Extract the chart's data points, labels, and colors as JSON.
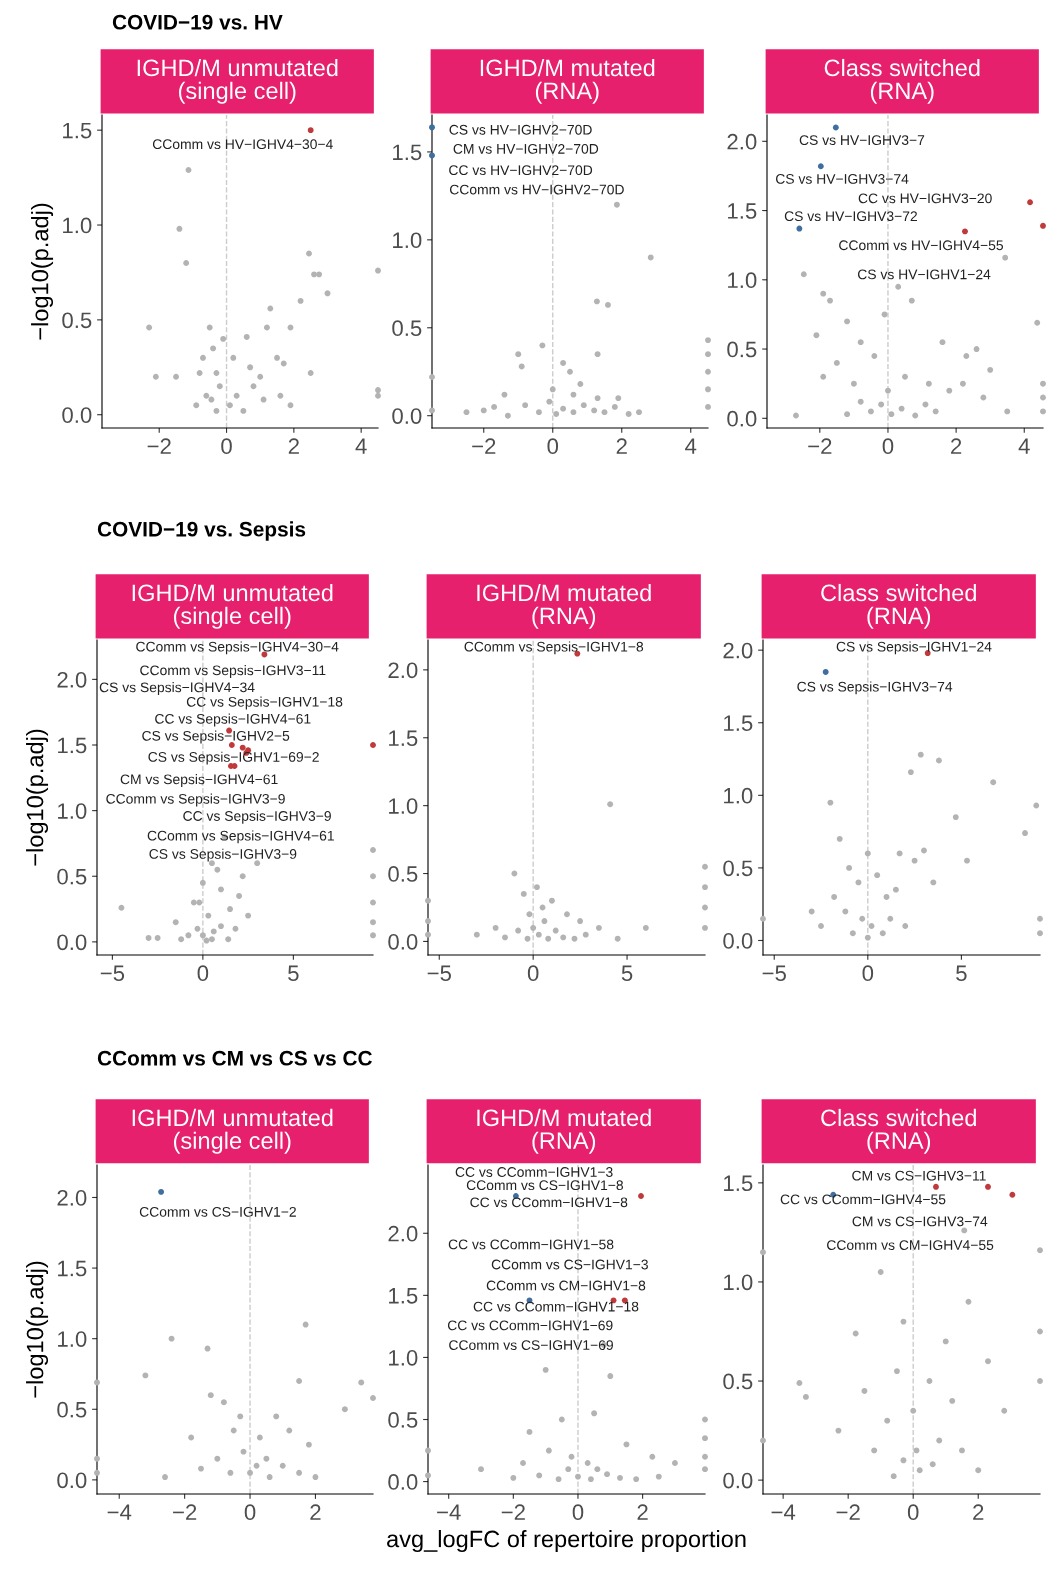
{
  "chart_data": [
    {
      "type": "scatter",
      "subtitle": "COVID−19 vs. HV",
      "title": "IGHD/M unmutated\n(single cell)",
      "ylabel": "−log10(p.adj)",
      "xlim": [
        -3.7,
        4.5
      ],
      "ylim": [
        -0.07,
        1.58
      ],
      "xticks": [
        {
          "value": -2,
          "label": "−2"
        },
        0,
        2,
        4
      ],
      "yticks": [
        {
          "value": 0,
          "label": "0.0"
        },
        {
          "value": 0.5,
          "label": "0.5"
        },
        {
          "value": 1,
          "label": "1.0"
        },
        {
          "value": 1.5,
          "label": "1.5"
        }
      ],
      "ref_lines": [
        {
          "axis": "x",
          "value": 0,
          "color": "#cccccc",
          "line_style": "dashed"
        }
      ],
      "series": [
        {
          "color": "#b3b3b3",
          "x": [
            -1.13,
            -1.4,
            -1.2,
            -2.3,
            2.45,
            2.6,
            2.75,
            3.0,
            4.5,
            4.5,
            4.5,
            2.2,
            1.9,
            1.2,
            1.3,
            0.6,
            -0.5,
            -0.4,
            -2.1,
            -1.5,
            -0.7,
            -0.8,
            -0.3,
            -0.6,
            -0.2,
            0.1,
            0.3,
            0.5,
            0.8,
            1.0,
            1.5,
            1.6,
            1.9,
            -0.3,
            -0.9,
            0.2,
            0.7,
            -0.1,
            1.1,
            2.5,
            1.7,
            -0.45
          ],
          "values": [
            1.29,
            0.98,
            0.8,
            0.46,
            0.85,
            0.74,
            0.74,
            0.64,
            0.76,
            0.13,
            0.1,
            0.6,
            0.46,
            0.46,
            0.56,
            0.41,
            0.46,
            0.35,
            0.2,
            0.2,
            0.3,
            0.22,
            0.22,
            0.1,
            0.15,
            0.05,
            0.1,
            0.02,
            0.15,
            0.2,
            0.3,
            0.1,
            0.05,
            0.02,
            0.05,
            0.3,
            0.25,
            0.4,
            0.08,
            0.22,
            0.27,
            0.08
          ]
        },
        {
          "color": "#c0393b",
          "x": [
            2.5
          ],
          "values": [
            1.5
          ]
        }
      ],
      "annotations": [
        "CComm vs HV−IGHV4−30−4"
      ]
    },
    {
      "type": "scatter",
      "title": "IGHD/M mutated\n(RNA)",
      "xlim": [
        -3.5,
        4.5
      ],
      "ylim": [
        -0.07,
        1.71
      ],
      "xticks": [
        {
          "value": -2,
          "label": "−2"
        },
        0,
        2,
        4
      ],
      "yticks": [
        {
          "value": 0,
          "label": "0.0"
        },
        {
          "value": 0.5,
          "label": "0.5"
        },
        {
          "value": 1,
          "label": "1.0"
        },
        {
          "value": 1.5,
          "label": "1.5"
        }
      ],
      "ref_lines": [
        {
          "axis": "x",
          "value": 0,
          "color": "#cccccc",
          "line_style": "dashed"
        }
      ],
      "series": [
        {
          "color": "#b3b3b3",
          "x": [
            1.86,
            2.84,
            1.28,
            1.6,
            4.5,
            4.5,
            4.5,
            4.5,
            4.5,
            -3.5,
            -3.5,
            -1.0,
            -0.9,
            -0.3,
            0.3,
            0.5,
            0.8,
            1.3,
            1.3,
            -1.7,
            -2.5,
            -2.0,
            -1.3,
            -0.8,
            -0.4,
            -0.1,
            0.1,
            0.3,
            0.6,
            0.9,
            1.2,
            1.5,
            1.8,
            2.2,
            2.5,
            -1.4,
            0.0,
            0.6,
            1.9
          ],
          "values": [
            1.2,
            0.9,
            0.65,
            0.63,
            0.43,
            0.35,
            0.25,
            0.15,
            0.05,
            0.22,
            0.03,
            0.35,
            0.28,
            0.4,
            0.3,
            0.25,
            0.18,
            0.35,
            0.1,
            0.05,
            0.02,
            0.03,
            0.0,
            0.06,
            0.02,
            0.08,
            0.01,
            0.04,
            0.02,
            0.06,
            0.03,
            0.02,
            0.05,
            0.01,
            0.02,
            0.12,
            0.15,
            0.12,
            0.1
          ]
        },
        {
          "color": "#3e6f9e",
          "x": [
            -3.5,
            -3.5
          ],
          "values": [
            1.64,
            1.48
          ]
        }
      ],
      "annotations": [
        "CS vs HV−IGHV2−70D",
        "CM vs HV−IGHV2−70D",
        "CC vs HV−IGHV2−70D",
        "CComm vs HV−IGHV2−70D"
      ]
    },
    {
      "type": "scatter",
      "title": "Class switched\n(RNA)",
      "xlim": [
        -3.55,
        4.55
      ],
      "ylim": [
        -0.07,
        2.19
      ],
      "xticks": [
        {
          "value": -2,
          "label": "−2"
        },
        0,
        2,
        4
      ],
      "yticks": [
        {
          "value": 0,
          "label": "0.0"
        },
        {
          "value": 0.5,
          "label": "0.5"
        },
        {
          "value": 1,
          "label": "1.0"
        },
        {
          "value": 1.5,
          "label": "1.5"
        },
        {
          "value": 2,
          "label": "2.0"
        }
      ],
      "ref_lines": [
        {
          "axis": "x",
          "value": 0,
          "color": "#cccccc",
          "line_style": "dashed"
        }
      ],
      "series": [
        {
          "color": "#b3b3b3",
          "x": [
            3.44,
            4.38,
            -2.47,
            -1.9,
            -1.7,
            -1.2,
            -0.8,
            -0.4,
            0.7,
            0.3,
            -0.1,
            1.6,
            2.3,
            2.6,
            3.0,
            4.55,
            4.55,
            4.55,
            -2.1,
            -1.5,
            -1.0,
            0.5,
            1.2,
            1.8,
            2.2,
            -0.5,
            -0.2,
            0.1,
            0.4,
            0.8,
            1.1,
            -1.2,
            -0.8,
            0.0,
            1.4,
            -2.7,
            2.8,
            -1.9,
            3.5
          ],
          "values": [
            1.16,
            0.69,
            1.04,
            0.9,
            0.85,
            0.7,
            0.55,
            0.45,
            0.85,
            0.95,
            0.75,
            0.55,
            0.45,
            0.5,
            0.35,
            0.25,
            0.15,
            0.05,
            0.6,
            0.4,
            0.25,
            0.3,
            0.25,
            0.2,
            0.25,
            0.05,
            0.1,
            0.03,
            0.07,
            0.02,
            0.1,
            0.03,
            0.12,
            0.2,
            0.05,
            0.02,
            0.15,
            0.3,
            0.05
          ]
        },
        {
          "color": "#c0393b",
          "x": [
            4.17,
            4.55,
            2.26
          ],
          "values": [
            1.56,
            1.39,
            1.35
          ]
        },
        {
          "color": "#3e6f9e",
          "x": [
            -1.53,
            -1.97,
            -2.6
          ],
          "values": [
            2.1,
            1.82,
            1.37
          ]
        }
      ],
      "annotations": [
        "CS vs HV−IGHV3−7",
        "CS vs HV−IGHV3−74",
        "CC vs HV−IGHV3−20",
        "CS vs HV−IGHV3−72",
        "CComm vs HV−IGHV4−55",
        "CS vs HV−IGHV1−24"
      ]
    },
    {
      "type": "scatter",
      "subtitle": "COVID−19 vs. Sepsis",
      "title": "IGHD/M unmutated\n(single cell)",
      "ylabel": "−log10(p.adj)",
      "xlim": [
        -5.85,
        9.4
      ],
      "ylim": [
        -0.1,
        2.3
      ],
      "xticks": [
        {
          "value": -5,
          "label": "−5"
        },
        0,
        5
      ],
      "yticks": [
        {
          "value": 0,
          "label": "0.0"
        },
        {
          "value": 0.5,
          "label": "0.5"
        },
        {
          "value": 1,
          "label": "1.0"
        },
        {
          "value": 1.5,
          "label": "1.5"
        },
        {
          "value": 2,
          "label": "2.0"
        }
      ],
      "ref_lines": [
        {
          "axis": "x",
          "value": 0,
          "color": "#cccccc",
          "line_style": "dashed"
        }
      ],
      "series": [
        {
          "color": "#b3b3b3",
          "x": [
            0.5,
            1.0,
            -0.5,
            -1.5,
            -4.5,
            -3.0,
            -2.5,
            0.0,
            1.5,
            2.2,
            2.0,
            0.3,
            -0.3,
            0.0,
            0.5,
            1.0,
            -0.8,
            9.4,
            9.4,
            9.4,
            9.4,
            9.4,
            1.2,
            0.8,
            3.0,
            2.5,
            -0.2,
            0.6,
            1.8,
            -1.2,
            0.2,
            1.4
          ],
          "values": [
            0.6,
            0.4,
            0.3,
            0.15,
            0.26,
            0.03,
            0.03,
            0.45,
            0.25,
            0.5,
            0.35,
            0.2,
            0.1,
            0.05,
            0.02,
            0.12,
            0.05,
            0.7,
            0.5,
            0.3,
            0.15,
            0.05,
            0.8,
            0.55,
            0.6,
            0.2,
            0.3,
            0.08,
            0.1,
            0.02,
            0.01,
            0.02
          ]
        },
        {
          "color": "#c0393b",
          "x": [
            3.4,
            1.45,
            1.6,
            2.2,
            2.5,
            2.4,
            1.55,
            1.75,
            9.4
          ],
          "values": [
            2.19,
            1.61,
            1.5,
            1.48,
            1.46,
            1.44,
            1.34,
            1.34,
            1.5
          ]
        }
      ],
      "annotations": [
        "CComm vs Sepsis−IGHV4−30−4",
        "CComm vs Sepsis−IGHV3−11",
        "CS vs Sepsis−IGHV4−34",
        "CC vs Sepsis−IGHV1−18",
        "CC vs Sepsis−IGHV4−61",
        "CS vs Sepsis−IGHV2−5",
        "CS vs Sepsis−IGHV1−69−2",
        "CM vs Sepsis−IGHV4−61",
        "CComm vs Sepsis−IGHV3−9",
        "CC vs Sepsis−IGHV3−9",
        "CComm vs Sepsis−IGHV4−61",
        "CS vs Sepsis−IGHV3−9"
      ]
    },
    {
      "type": "scatter",
      "title": "IGHD/M mutated\n(RNA)",
      "xlim": [
        -5.6,
        9.15
      ],
      "ylim": [
        -0.1,
        2.22
      ],
      "xticks": [
        {
          "value": -5,
          "label": "−5"
        },
        0,
        5
      ],
      "yticks": [
        {
          "value": 0,
          "label": "0.0"
        },
        {
          "value": 0.5,
          "label": "0.5"
        },
        {
          "value": 1,
          "label": "1.0"
        },
        {
          "value": 1.5,
          "label": "1.5"
        },
        {
          "value": 2,
          "label": "2.0"
        }
      ],
      "ref_lines": [
        {
          "axis": "x",
          "value": 0,
          "color": "#cccccc",
          "line_style": "dashed"
        }
      ],
      "series": [
        {
          "color": "#b3b3b3",
          "x": [
            4.1,
            -1.0,
            -0.5,
            0.2,
            0.5,
            1.0,
            1.8,
            2.5,
            3.5,
            -2.0,
            -3.0,
            -5.6,
            -5.6,
            -5.6,
            9.15,
            9.15,
            9.15,
            9.15,
            -1.5,
            -0.8,
            -0.3,
            0.0,
            0.3,
            0.8,
            1.2,
            1.6,
            2.2,
            2.8,
            4.5,
            6.0,
            -0.2,
            0.6
          ],
          "values": [
            1.01,
            0.5,
            0.35,
            0.4,
            0.25,
            0.3,
            0.2,
            0.15,
            0.1,
            0.1,
            0.05,
            0.3,
            0.15,
            0.05,
            0.55,
            0.4,
            0.25,
            0.1,
            0.03,
            0.08,
            0.02,
            0.1,
            0.05,
            0.02,
            0.08,
            0.03,
            0.02,
            0.05,
            0.02,
            0.1,
            0.2,
            0.15
          ]
        },
        {
          "color": "#c0393b",
          "x": [
            2.35
          ],
          "values": [
            2.12
          ]
        }
      ],
      "annotations": [
        "CComm vs Sepsis−IGHV1−8"
      ]
    },
    {
      "type": "scatter",
      "title": "Class switched\n(RNA)",
      "xlim": [
        -5.6,
        9.2
      ],
      "ylim": [
        -0.1,
        2.07
      ],
      "xticks": [
        {
          "value": -5,
          "label": "−5"
        },
        0,
        5
      ],
      "yticks": [
        {
          "value": 0,
          "label": "0.0"
        },
        {
          "value": 0.5,
          "label": "0.5"
        },
        {
          "value": 1,
          "label": "1.0"
        },
        {
          "value": 1.5,
          "label": "1.5"
        },
        {
          "value": 2,
          "label": "2.0"
        }
      ],
      "ref_lines": [
        {
          "axis": "x",
          "value": 0,
          "color": "#cccccc",
          "line_style": "dashed"
        }
      ],
      "series": [
        {
          "color": "#b3b3b3",
          "x": [
            2.83,
            2.3,
            3.8,
            6.7,
            9.0,
            8.4,
            -2.0,
            -1.5,
            -1.0,
            -0.5,
            0.0,
            0.5,
            1.0,
            1.5,
            2.5,
            3.5,
            4.7,
            5.3,
            -3.0,
            -5.6,
            9.2,
            9.2,
            -2.5,
            -1.2,
            -0.3,
            0.2,
            0.8,
            1.2,
            -0.8,
            0.0,
            2.0,
            -1.8,
            1.7,
            3.0
          ],
          "values": [
            1.28,
            1.16,
            1.24,
            1.09,
            0.93,
            0.74,
            0.95,
            0.7,
            0.5,
            0.4,
            0.6,
            0.45,
            0.3,
            0.35,
            0.55,
            0.4,
            0.85,
            0.55,
            0.2,
            0.15,
            0.15,
            0.05,
            0.1,
            0.2,
            0.15,
            0.1,
            0.05,
            0.15,
            0.05,
            0.02,
            0.1,
            0.3,
            0.6,
            0.62
          ]
        },
        {
          "color": "#c0393b",
          "x": [
            3.2
          ],
          "values": [
            1.98
          ]
        },
        {
          "color": "#3e6f9e",
          "x": [
            -2.25
          ],
          "values": [
            1.85
          ]
        }
      ],
      "annotations": [
        "CS vs Sepsis−IGHV1−24",
        "CS vs Sepsis−IGHV3−74"
      ]
    },
    {
      "type": "scatter",
      "subtitle": "CComm vs CM vs CS vs CC",
      "title": "IGHD/M unmutated\n(single cell)",
      "ylabel": "−log10(p.adj)",
      "xlim": [
        -4.68,
        3.76
      ],
      "ylim": [
        -0.1,
        2.23
      ],
      "xticks": [
        {
          "value": -4,
          "label": "−4"
        },
        {
          "value": -2,
          "label": "−2"
        },
        0,
        2
      ],
      "yticks": [
        {
          "value": 0,
          "label": "0.0"
        },
        {
          "value": 0.5,
          "label": "0.5"
        },
        {
          "value": 1,
          "label": "1.0"
        },
        {
          "value": 1.5,
          "label": "1.5"
        },
        {
          "value": 2,
          "label": "2.0"
        }
      ],
      "ref_lines": [
        {
          "axis": "x",
          "value": 0,
          "color": "#cccccc",
          "line_style": "dashed"
        }
      ],
      "series": [
        {
          "color": "#b3b3b3",
          "x": [
            -2.4,
            -1.3,
            1.7,
            -3.2,
            3.4,
            2.9,
            -4.68,
            -4.68,
            -4.68,
            3.76,
            -1.2,
            -0.8,
            -0.5,
            0.3,
            0.8,
            1.2,
            1.8,
            -1.8,
            -0.2,
            0.5,
            1.0,
            -1.0,
            -0.6,
            0.0,
            0.6,
            1.5,
            -1.5,
            -2.6,
            2.0,
            0.2,
            -0.3,
            1.5
          ],
          "values": [
            1.0,
            0.93,
            1.1,
            0.74,
            0.69,
            0.5,
            0.69,
            0.15,
            0.05,
            0.58,
            0.6,
            0.55,
            0.35,
            0.3,
            0.45,
            0.35,
            0.25,
            0.3,
            0.2,
            0.15,
            0.1,
            0.15,
            0.05,
            0.05,
            0.02,
            0.05,
            0.08,
            0.02,
            0.02,
            0.1,
            0.45,
            0.7
          ]
        },
        {
          "color": "#3e6f9e",
          "x": [
            -2.72
          ],
          "values": [
            2.04
          ]
        }
      ],
      "annotations": [
        "CComm vs CS−IGHV1−2"
      ]
    },
    {
      "type": "scatter",
      "title": "IGHD/M mutated\n(RNA)",
      "xlabel": "avg_logFC of repertoire proportion",
      "xlim": [
        -4.64,
        3.93
      ],
      "ylim": [
        -0.1,
        2.55
      ],
      "xticks": [
        {
          "value": -4,
          "label": "−4"
        },
        {
          "value": -2,
          "label": "−2"
        },
        0,
        2
      ],
      "yticks": [
        {
          "value": 0,
          "label": "0.0"
        },
        {
          "value": 0.5,
          "label": "0.5"
        },
        {
          "value": 1,
          "label": "1.0"
        },
        {
          "value": 1.5,
          "label": "1.5"
        },
        {
          "value": 2,
          "label": "2.0"
        }
      ],
      "ref_lines": [
        {
          "axis": "x",
          "value": 0,
          "color": "#cccccc",
          "line_style": "dashed"
        }
      ],
      "series": [
        {
          "color": "#b3b3b3",
          "x": [
            -1.0,
            0.8,
            1.0,
            -0.5,
            0.5,
            1.5,
            -1.5,
            -0.2,
            0.3,
            2.3,
            3.0,
            -3.0,
            -4.64,
            -4.64,
            3.93,
            3.93,
            3.93,
            3.93,
            -2.0,
            -1.2,
            -0.6,
            0.0,
            0.4,
            0.9,
            1.3,
            1.8,
            2.5,
            -0.3,
            0.6,
            -1.7,
            -0.9
          ],
          "values": [
            0.9,
            1.1,
            0.85,
            0.5,
            0.55,
            0.3,
            0.4,
            0.2,
            0.15,
            0.2,
            0.15,
            0.1,
            0.25,
            0.05,
            0.5,
            0.35,
            0.2,
            0.1,
            0.03,
            0.05,
            0.02,
            0.04,
            0.02,
            0.06,
            0.03,
            0.02,
            0.04,
            0.1,
            0.1,
            0.15,
            0.25
          ]
        },
        {
          "color": "#c0393b",
          "x": [
            1.95,
            1.1,
            1.45
          ],
          "values": [
            2.3,
            1.46,
            1.46
          ]
        },
        {
          "color": "#3e6f9e",
          "x": [
            -1.92,
            -1.5
          ],
          "values": [
            2.3,
            1.46
          ]
        }
      ],
      "annotations": [
        "CC vs CComm−IGHV1−3",
        "CComm vs CS−IGHV1−8",
        "CC vs CComm−IGHV1−8",
        "CC vs CComm−IGHV1−58",
        "CComm vs CS−IGHV1−3",
        "CComm vs CM−IGHV1−8",
        "CC vs CComm−IGHV1−18",
        "CC vs CComm−IGHV1−69",
        "CComm vs CS−IGHV1−69"
      ]
    },
    {
      "type": "scatter",
      "title": "Class switched\n(RNA)",
      "xlim": [
        -4.62,
        3.9
      ],
      "ylim": [
        -0.07,
        1.59
      ],
      "xticks": [
        {
          "value": -4,
          "label": "−4"
        },
        {
          "value": -2,
          "label": "−2"
        },
        0,
        2
      ],
      "yticks": [
        {
          "value": 0,
          "label": "0.0"
        },
        {
          "value": 0.5,
          "label": "0.5"
        },
        {
          "value": 1,
          "label": "1.0"
        },
        {
          "value": 1.5,
          "label": "1.5"
        }
      ],
      "ref_lines": [
        {
          "axis": "x",
          "value": 0,
          "color": "#cccccc",
          "line_style": "dashed"
        }
      ],
      "series": [
        {
          "color": "#b3b3b3",
          "x": [
            3.9,
            1.57,
            -1.0,
            -1.77,
            -3.5,
            -4.62,
            -4.62,
            3.9,
            3.9,
            2.3,
            2.8,
            1.0,
            0.5,
            -0.5,
            -1.5,
            -0.8,
            0.0,
            0.8,
            1.5,
            -1.2,
            -2.3,
            -0.3,
            0.2,
            0.6,
            -0.6,
            0.1,
            1.2,
            -3.3,
            2.0,
            1.7,
            -0.3
          ],
          "values": [
            1.16,
            1.26,
            1.05,
            0.74,
            0.49,
            1.15,
            0.2,
            0.75,
            0.5,
            0.6,
            0.35,
            0.7,
            0.5,
            0.55,
            0.45,
            0.3,
            0.35,
            0.2,
            0.15,
            0.15,
            0.25,
            0.1,
            0.05,
            0.08,
            0.02,
            0.15,
            0.4,
            0.42,
            0.05,
            0.9,
            0.8
          ]
        },
        {
          "color": "#c0393b",
          "x": [
            0.7,
            2.3,
            3.05
          ],
          "values": [
            1.48,
            1.48,
            1.44
          ]
        },
        {
          "color": "#3e6f9e",
          "x": [
            -2.46
          ],
          "values": [
            1.44
          ]
        }
      ],
      "annotations": [
        "CM vs CS−IGHV3−11",
        "CC vs CComm−IGHV4−55",
        "CM vs CS−IGHV3−74",
        "CComm vs CM−IGHV4−55"
      ]
    }
  ]
}
